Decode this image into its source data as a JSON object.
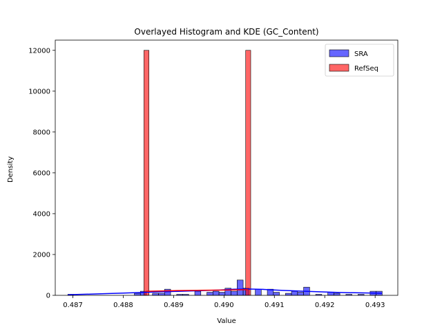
{
  "chart_data": {
    "type": "histogram",
    "title": "Overlayed Histogram and KDE (GC_Content)",
    "xlabel": "Value",
    "ylabel": "Density",
    "xlim": [
      0.48665,
      0.49345
    ],
    "ylim": [
      0,
      12500
    ],
    "xticks": [
      0.487,
      0.488,
      0.489,
      0.49,
      0.491,
      0.492,
      0.493
    ],
    "xtick_labels": [
      "0.487",
      "0.488",
      "0.489",
      "0.490",
      "0.491",
      "0.492",
      "0.493"
    ],
    "yticks": [
      0,
      2000,
      4000,
      6000,
      8000,
      10000,
      12000
    ],
    "ytick_labels": [
      "0",
      "2000",
      "4000",
      "6000",
      "8000",
      "10000",
      "12000"
    ],
    "grid": false,
    "legend_position": "top-right",
    "series": [
      {
        "name": "SRA",
        "color": "#0000ff",
        "bin_edges": [
          0.4869,
          0.48702,
          0.48714,
          0.48726,
          0.48738,
          0.4875,
          0.48762,
          0.48774,
          0.48786,
          0.48798,
          0.4881,
          0.48822,
          0.48834,
          0.48846,
          0.48858,
          0.4887,
          0.48882,
          0.48894,
          0.48906,
          0.48918,
          0.4893,
          0.48942,
          0.48954,
          0.48966,
          0.48978,
          0.4899,
          0.49002,
          0.49014,
          0.49026,
          0.49038,
          0.4905,
          0.49062,
          0.49074,
          0.49086,
          0.49098,
          0.4911,
          0.49122,
          0.49134,
          0.49146,
          0.49158,
          0.4917,
          0.49182,
          0.49194,
          0.49206,
          0.49218,
          0.4923,
          0.49242,
          0.49254,
          0.49266,
          0.49278,
          0.4929,
          0.49302,
          0.49314
        ],
        "values": [
          50,
          0,
          0,
          0,
          0,
          0,
          0,
          0,
          0,
          0,
          0,
          100,
          200,
          0,
          100,
          100,
          300,
          0,
          50,
          50,
          0,
          200,
          0,
          150,
          200,
          150,
          350,
          200,
          750,
          350,
          0,
          300,
          0,
          300,
          150,
          0,
          100,
          200,
          150,
          400,
          0,
          50,
          0,
          150,
          100,
          0,
          50,
          0,
          50,
          0,
          200,
          200
        ],
        "kde_x": [
          0.4869,
          0.4875,
          0.4881,
          0.4887,
          0.4893,
          0.4899,
          0.4902,
          0.4905,
          0.4908,
          0.4911,
          0.4917,
          0.4923,
          0.49314
        ],
        "kde_y": [
          30,
          70,
          120,
          170,
          210,
          260,
          300,
          310,
          290,
          250,
          190,
          140,
          100
        ]
      },
      {
        "name": "RefSeq",
        "color": "#ff0000",
        "bin_edges": [
          0.48841,
          0.48851,
          0.49043,
          0.49053
        ],
        "values": [
          12000,
          0,
          12000
        ],
        "kde_x": [
          0.48846,
          0.489,
          0.4896,
          0.49,
          0.49048
        ],
        "kde_y": [
          200,
          230,
          250,
          260,
          280
        ]
      }
    ]
  }
}
